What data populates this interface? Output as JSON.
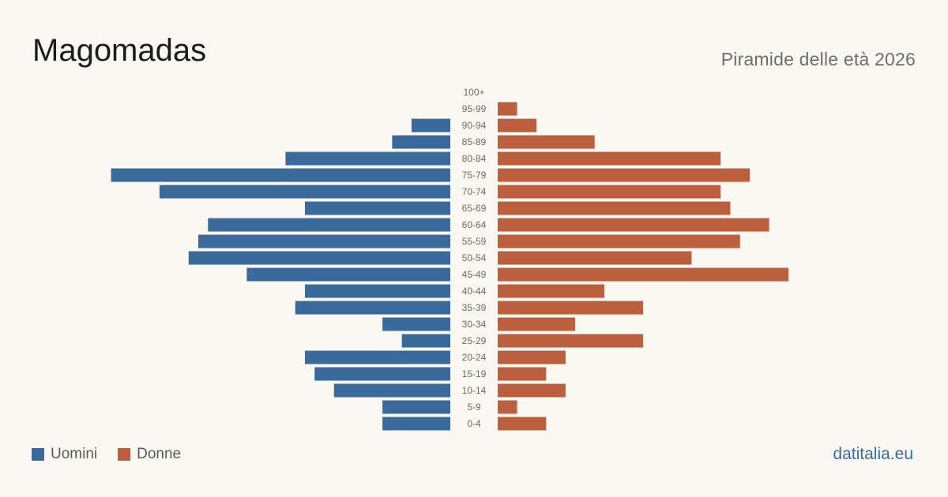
{
  "header": {
    "title": "Magomadas",
    "subtitle": "Piramide delle età 2026"
  },
  "footer": {
    "source": "datitalia.eu"
  },
  "colors": {
    "men": "#3b6a9a",
    "women": "#bb5f3d"
  },
  "chart_data": {
    "type": "bar",
    "orientation": "horizontal-population-pyramid",
    "title": "Magomadas",
    "subtitle": "Piramide delle età 2026",
    "categories": [
      "100+",
      "95-99",
      "90-94",
      "85-89",
      "80-84",
      "75-79",
      "70-74",
      "65-69",
      "60-64",
      "55-59",
      "50-54",
      "45-49",
      "40-44",
      "35-39",
      "30-34",
      "25-29",
      "20-24",
      "15-19",
      "10-14",
      "5-9",
      "0-4"
    ],
    "series": [
      {
        "name": "Uomini",
        "side": "left",
        "values": [
          0,
          0,
          4,
          6,
          17,
          35,
          30,
          15,
          25,
          26,
          27,
          21,
          15,
          16,
          7,
          5,
          15,
          14,
          12,
          7,
          7
        ]
      },
      {
        "name": "Donne",
        "side": "right",
        "values": [
          0,
          2,
          4,
          10,
          23,
          26,
          23,
          24,
          28,
          25,
          20,
          30,
          11,
          15,
          8,
          15,
          7,
          5,
          7,
          2,
          5
        ]
      }
    ],
    "legend": "bottom-left",
    "grid": false
  }
}
